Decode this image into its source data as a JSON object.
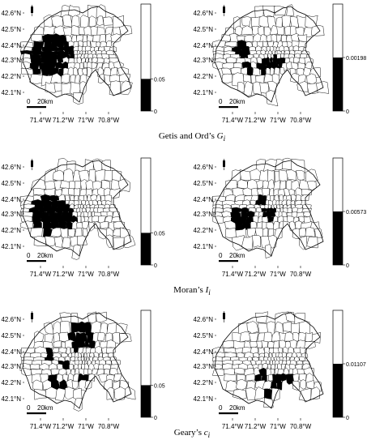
{
  "lat_labels": [
    "42.6°N",
    "42.5°N",
    "42.4°N",
    "42.3°N",
    "42.2°N",
    "42.1°N"
  ],
  "lon_labels": [
    "71.4°W",
    "71.2°W",
    "71°W",
    "70.8°W"
  ],
  "scalebar": {
    "zero": "0",
    "distance": "20km"
  },
  "rows": [
    {
      "caption": {
        "prefix": "Getis and Ord’s ",
        "symbol": "G",
        "subscript": "i"
      },
      "panels": [
        {
          "legend_threshold": "0.05",
          "legend_zero": "0",
          "fill_fraction": 0.3
        },
        {
          "legend_threshold": "0.00198",
          "legend_zero": "0",
          "fill_fraction": 0.5
        }
      ]
    },
    {
      "caption": {
        "prefix": "Moran’s ",
        "symbol": "I",
        "subscript": "i"
      },
      "panels": [
        {
          "legend_threshold": "0.05",
          "legend_zero": "0",
          "fill_fraction": 0.3
        },
        {
          "legend_threshold": "0.00573",
          "legend_zero": "0",
          "fill_fraction": 0.5
        }
      ]
    },
    {
      "caption": {
        "prefix": "Geary’s ",
        "symbol": "c",
        "subscript": "i"
      },
      "panels": [
        {
          "legend_threshold": "0.05",
          "legend_zero": "0",
          "fill_fraction": 0.3
        },
        {
          "legend_threshold": "0.01107",
          "legend_zero": "0",
          "fill_fraction": 0.5
        }
      ]
    }
  ]
}
